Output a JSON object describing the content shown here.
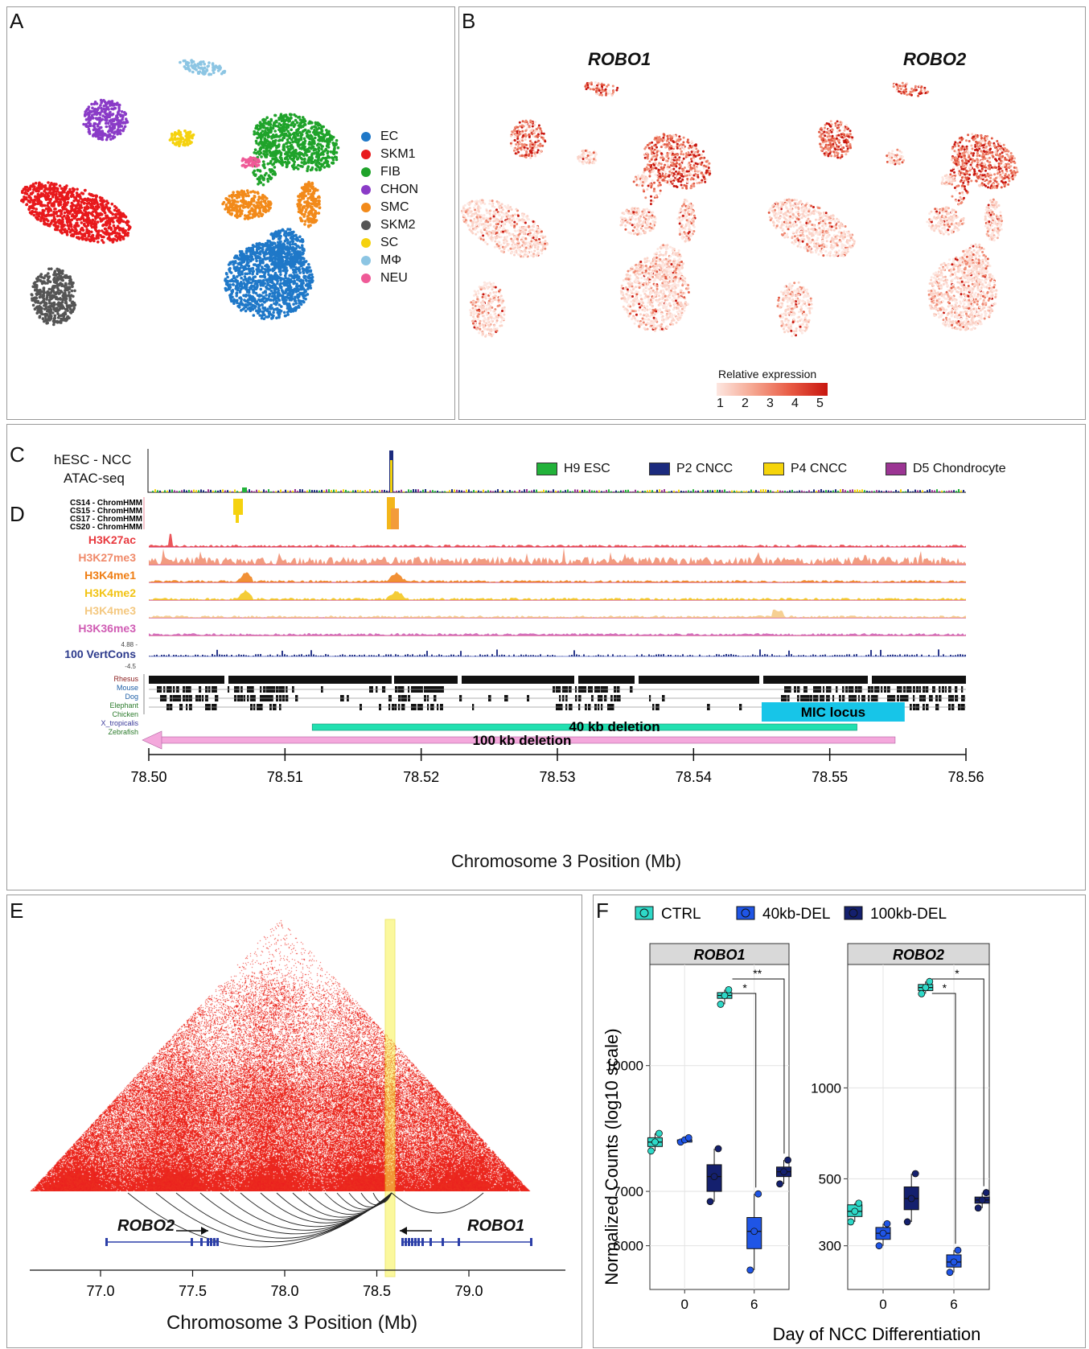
{
  "panels": {
    "A": "A",
    "B": "B",
    "C": "C",
    "D": "D",
    "E": "E",
    "F": "F"
  },
  "colors": {
    "EC": "#1f78c8",
    "SKM1": "#e8191c",
    "FIB": "#1fa32a",
    "CHON": "#8a3bc7",
    "SMC": "#f28a1a",
    "SKM2": "#555555",
    "SC": "#f5d20f",
    "MPHI": "#8cc5e3",
    "NEU": "#ef5a97"
  },
  "panelA": {
    "legend": [
      "EC",
      "SKM1",
      "FIB",
      "CHON",
      "SMC",
      "SKM2",
      "SC",
      "MΦ",
      "NEU"
    ]
  },
  "panelB": {
    "title_left": "ROBO1",
    "title_right": "ROBO2",
    "colorbar_title": "Relative expression",
    "colorbar_ticks": [
      "1",
      "2",
      "3",
      "4",
      "5"
    ]
  },
  "panelC": {
    "track_label_1": "hESC - NCC",
    "track_label_2": "ATAC-seq",
    "legend": [
      {
        "label": "H9 ESC",
        "color": "#22b23a"
      },
      {
        "label": "P2 CNCC",
        "color": "#1c2b7e"
      },
      {
        "label": "P4 CNCC",
        "color": "#f5d40a"
      },
      {
        "label": "D5 Chondrocyte",
        "color": "#9b3593"
      }
    ]
  },
  "panelD": {
    "chromhmm": [
      "CS14 - ChromHMM",
      "CS15 - ChromHMM",
      "CS17 - ChromHMM",
      "CS20 - ChromHMM"
    ],
    "tracks": [
      {
        "label": "H3K27ac",
        "color": "#e8383d"
      },
      {
        "label": "H3K27me3",
        "color": "#f08a6a"
      },
      {
        "label": "H3K4me1",
        "color": "#ef7d12"
      },
      {
        "label": "H3K4me2",
        "color": "#f2c313"
      },
      {
        "label": "H3K4me3",
        "color": "#f4c880"
      },
      {
        "label": "H3K36me3",
        "color": "#d05cb4"
      }
    ],
    "vertcons_label": "100 VertCons",
    "vertcons_top": "4.88 -",
    "vertcons_bottom": "-4.5",
    "species": [
      "Rhesus",
      "Mouse",
      "Dog",
      "Elephant",
      "Chicken",
      "X_tropicalis",
      "Zebrafish"
    ],
    "mic_locus": "MIC locus",
    "deletion_40": "40 kb deletion",
    "deletion_100": "100 kb deletion",
    "axis_ticks": [
      "78.50",
      "78.51",
      "78.52",
      "78.53",
      "78.54",
      "78.55",
      "78.56"
    ],
    "axis_label": "Chromosome 3 Position (Mb)"
  },
  "panelE": {
    "gene_left": "ROBO2",
    "gene_right": "ROBO1",
    "axis_ticks": [
      "77.0",
      "77.5",
      "78.0",
      "78.5",
      "79.0"
    ],
    "axis_label": "Chromosome 3 Position (Mb)"
  },
  "chart_data": {
    "type": "box",
    "legend": [
      {
        "label": "CTRL",
        "color": "#2ed9c8"
      },
      {
        "label": "40kb-DEL",
        "color": "#1f55e6"
      },
      {
        "label": "100kb-DEL",
        "color": "#14206e"
      }
    ],
    "xlabel": "Day of NCC Differentiation",
    "ylabel": "Normalized Counts (log10 scale)",
    "x": [
      "0",
      "6"
    ],
    "facets": [
      {
        "name": "ROBO1",
        "yticks": [
          "6000",
          "7000",
          "10000"
        ],
        "series": [
          {
            "name": "CTRL",
            "day0": {
              "min": 7850,
              "q1": 7950,
              "median": 8050,
              "q3": 8150,
              "max": 8250
            },
            "day6": {
              "min": 11900,
              "q1": 12100,
              "median": 12200,
              "q3": 12300,
              "max": 12400
            }
          },
          {
            "name": "40kb-DEL",
            "day0": {
              "min": 8050,
              "q1": 8050,
              "median": 8100,
              "q3": 8100,
              "max": 8150
            },
            "day6": {
              "min": 5600,
              "q1": 5950,
              "median": 6250,
              "q3": 6500,
              "max": 6950
            }
          },
          {
            "name": "100kb-DEL",
            "day0": {
              "min": 6800,
              "q1": 7000,
              "median": 7300,
              "q3": 7550,
              "max": 7900
            },
            "day6": {
              "min": 7150,
              "q1": 7300,
              "median": 7400,
              "q3": 7500,
              "max": 7650
            }
          }
        ],
        "significance": [
          "**",
          "*"
        ]
      },
      {
        "name": "ROBO2",
        "yticks": [
          "300",
          "500",
          "1000"
        ],
        "series": [
          {
            "name": "CTRL",
            "day0": {
              "min": 360,
              "q1": 375,
              "median": 390,
              "q3": 410,
              "max": 415
            },
            "day6": {
              "min": 2050,
              "q1": 2100,
              "median": 2150,
              "q3": 2200,
              "max": 2250
            }
          },
          {
            "name": "40kb-DEL",
            "day0": {
              "min": 300,
              "q1": 315,
              "median": 330,
              "q3": 345,
              "max": 355
            },
            "day6": {
              "min": 245,
              "q1": 255,
              "median": 265,
              "q3": 280,
              "max": 290
            }
          },
          {
            "name": "100kb-DEL",
            "day0": {
              "min": 360,
              "q1": 395,
              "median": 430,
              "q3": 470,
              "max": 520
            },
            "day6": {
              "min": 400,
              "q1": 415,
              "median": 425,
              "q3": 435,
              "max": 450
            }
          }
        ],
        "significance": [
          "*",
          "*"
        ]
      }
    ]
  }
}
